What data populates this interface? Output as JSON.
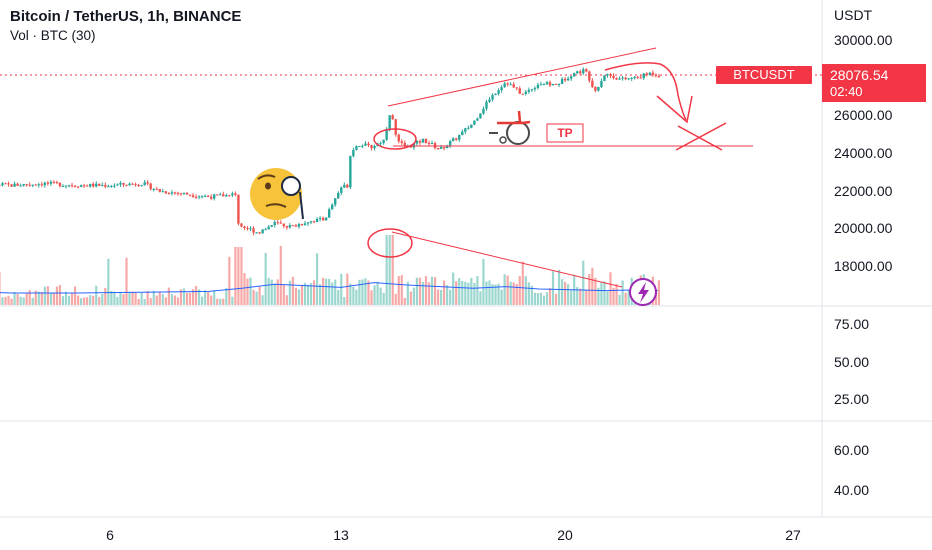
{
  "header": {
    "title": "Bitcoin / TetherUS, 1h, BINANCE",
    "volume_label": "Vol · BTC (30)"
  },
  "price_axis": {
    "unit": "USDT",
    "ticks": [
      "30000.00",
      "26000.00",
      "24000.00",
      "22000.00",
      "20000.00",
      "18000.00"
    ]
  },
  "symbol_tag": {
    "label": "BTCUSDT",
    "color": "#f23645"
  },
  "last_price_tag": {
    "price": "28076.54",
    "countdown": "02:40",
    "color": "#f23645"
  },
  "annotations": {
    "tp_label": "TP"
  },
  "pane2": {
    "ticks": [
      "75.00",
      "50.00",
      "25.00"
    ]
  },
  "pane3": {
    "ticks": [
      "60.00",
      "40.00"
    ]
  },
  "x_axis": {
    "ticks": [
      "6",
      "13",
      "20",
      "27"
    ]
  },
  "chart_data": {
    "type": "candlestick",
    "title": "Bitcoin / TetherUS, 1h, BINANCE",
    "symbol": "BTCUSDT",
    "interval": "1h",
    "ylim": [
      16800,
      31200
    ],
    "x_ticks": [
      "6",
      "13",
      "20",
      "27"
    ],
    "last_price": 28076.54,
    "price_path": {
      "days": [
        1,
        1.2,
        1.25,
        2,
        3,
        4,
        5,
        6,
        7,
        7.5,
        8,
        9,
        9.8,
        9.9,
        10.5,
        11,
        11.5,
        12,
        12.5,
        13,
        13.2,
        13.3,
        13.6,
        13.9,
        14.3,
        14.5,
        14.7,
        15,
        15.5,
        16,
        16.5,
        17,
        17.5,
        18,
        18.5,
        19,
        19.5,
        20,
        20.4,
        20.7,
        21,
        21.5,
        22,
        22.4,
        22.7
      ],
      "prices": [
        23400,
        23500,
        22300,
        22400,
        22300,
        22400,
        22300,
        22300,
        22400,
        22000,
        21900,
        21700,
        21800,
        20200,
        19800,
        20300,
        20100,
        20400,
        20500,
        22200,
        22300,
        24200,
        24500,
        24300,
        24700,
        26300,
        24600,
        24300,
        24700,
        24200,
        24800,
        25600,
        26900,
        27800,
        27100,
        27700,
        27600,
        28200,
        28400,
        27300,
        28200,
        27900,
        28000,
        28250,
        28076.54
      ]
    },
    "volume_ma": {
      "days": [
        1,
        3,
        5,
        7,
        9,
        10,
        11,
        12,
        13,
        14,
        15,
        16,
        17,
        18,
        19,
        20,
        21,
        22,
        22.6
      ],
      "values": [
        35,
        30,
        30,
        32,
        34,
        42,
        52,
        48,
        44,
        56,
        50,
        46,
        42,
        46,
        40,
        38,
        36,
        38,
        36
      ]
    },
    "drawings": [
      {
        "type": "trend_line",
        "from": [
          14.5,
          26300
        ],
        "to": [
          22.7,
          29500
        ]
      },
      {
        "type": "horizontal_line",
        "from": [
          14.6,
          24400
        ],
        "to": [
          24.5,
          24400
        ]
      },
      {
        "type": "volume_trend_line",
        "from": [
          14.5,
          "peak"
        ],
        "to": [
          22.4,
          "low"
        ]
      }
    ]
  },
  "colors": {
    "up": "#26a69a",
    "down": "#ef5350",
    "vol_up": "#9bd6cf",
    "vol_down": "#f6a8a6",
    "vol_ma": "#2962ff",
    "drawing": "#f23645",
    "grid": "#e0e3eb",
    "axis_text": "#131722"
  },
  "icons": [
    "thinking-face-emoji",
    "wheelchair-icon",
    "lightning-icon"
  ]
}
